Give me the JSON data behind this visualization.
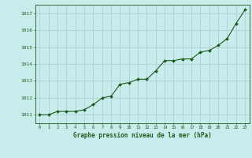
{
  "x": [
    0,
    1,
    2,
    3,
    4,
    5,
    6,
    7,
    8,
    9,
    10,
    11,
    12,
    13,
    14,
    15,
    16,
    17,
    18,
    19,
    20,
    21,
    22,
    23
  ],
  "y": [
    1011.0,
    1011.0,
    1011.2,
    1011.2,
    1011.2,
    1011.3,
    1011.6,
    1012.0,
    1012.1,
    1012.8,
    1012.9,
    1013.1,
    1013.1,
    1013.6,
    1014.2,
    1014.2,
    1014.3,
    1014.3,
    1014.7,
    1014.8,
    1015.1,
    1015.5,
    1016.4,
    1017.2
  ],
  "line_color": "#1a5c1a",
  "marker": "D",
  "marker_size": 2.0,
  "bg_color": "#c8ecec",
  "grid_color": "#aacccc",
  "ylabel_ticks": [
    1011,
    1012,
    1013,
    1014,
    1015,
    1016,
    1017
  ],
  "xlabel_label": "Graphe pression niveau de la mer (hPa)",
  "xlim": [
    -0.5,
    23.5
  ],
  "ylim": [
    1010.5,
    1017.5
  ],
  "axis_color": "#1a5c1a",
  "tick_color": "#1a5c1a",
  "label_color": "#1a5c1a"
}
